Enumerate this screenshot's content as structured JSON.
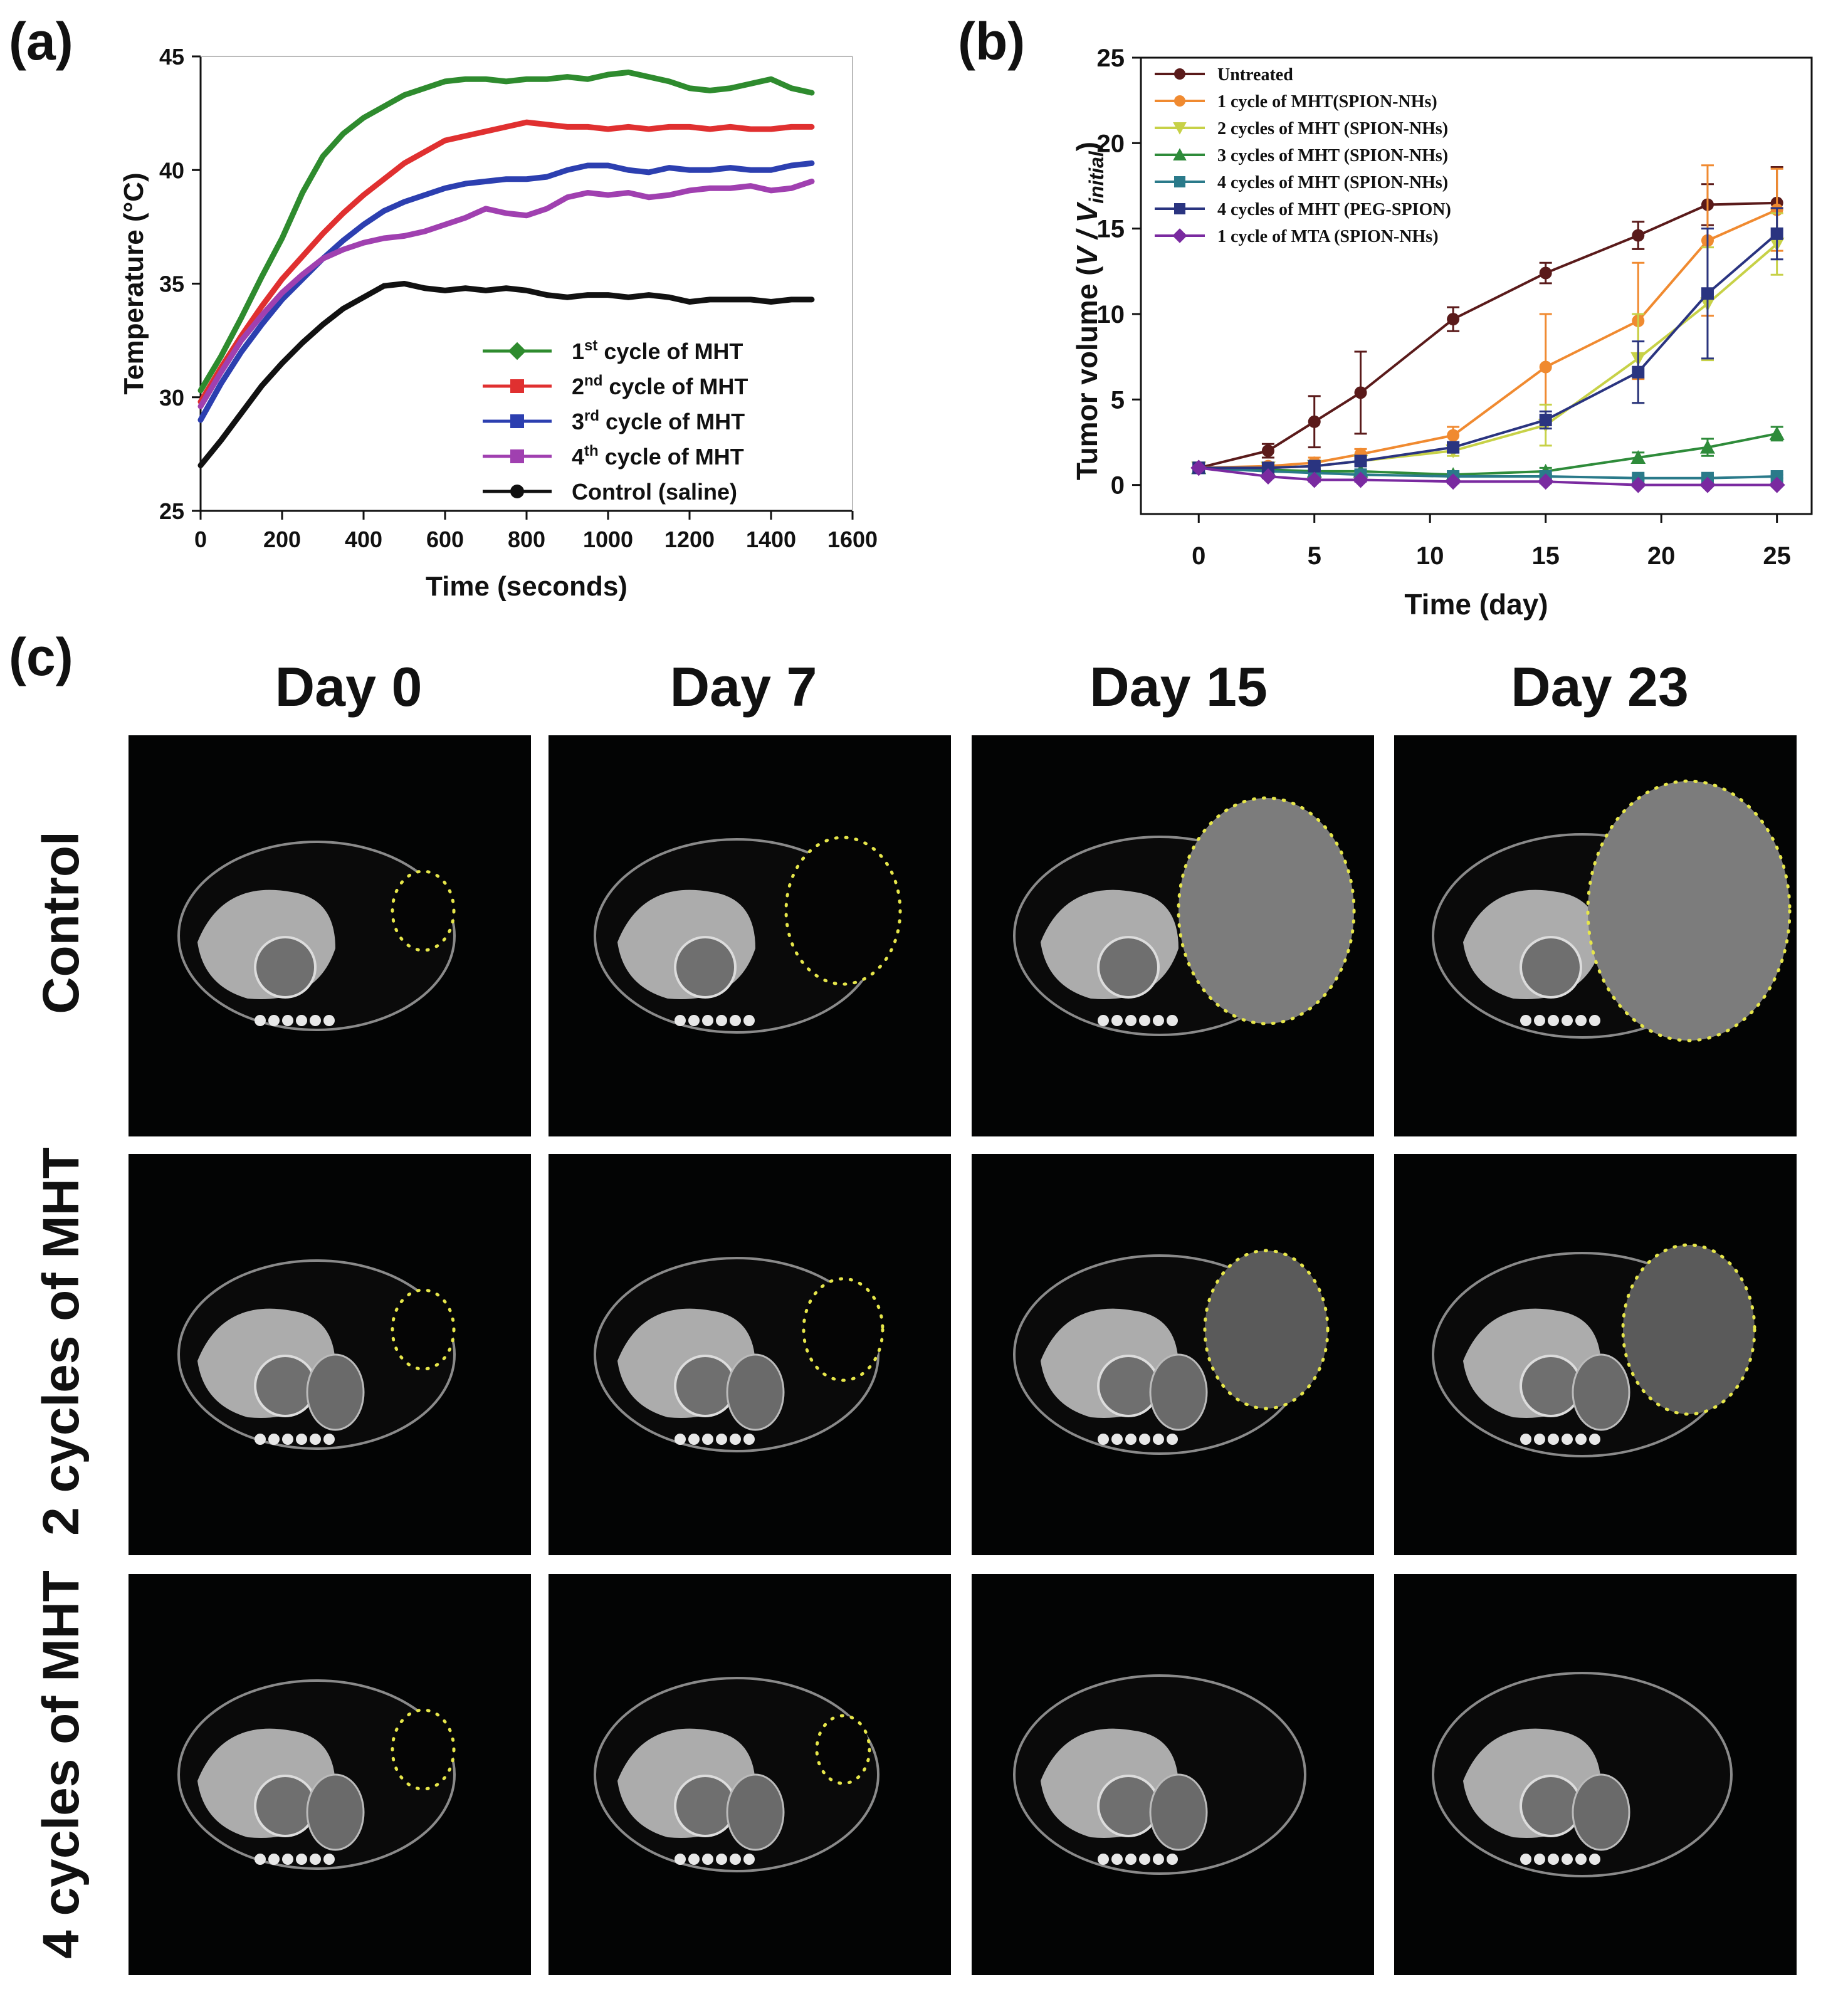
{
  "panels": {
    "a": "(a)",
    "b": "(b)",
    "c": "(c)"
  },
  "chart_data": [
    {
      "id": "a",
      "type": "line",
      "xlabel": "Time (seconds)",
      "ylabel": "Temperature (°C)",
      "xlim": [
        0,
        1600
      ],
      "ylim": [
        25,
        45
      ],
      "xticks": [
        0,
        200,
        400,
        600,
        800,
        1000,
        1200,
        1400,
        1600
      ],
      "yticks": [
        25,
        30,
        35,
        40,
        45
      ],
      "grid": false,
      "legend_position": "bottom-right",
      "series": [
        {
          "name": "1st cycle of MHT",
          "label_parts": [
            "1",
            "st",
            " cycle of MHT"
          ],
          "color": "#2e8b2e",
          "marker": "diamond",
          "points": [
            [
              0,
              30.3
            ],
            [
              50,
              31.8
            ],
            [
              100,
              33.5
            ],
            [
              150,
              35.3
            ],
            [
              200,
              37.0
            ],
            [
              250,
              39.0
            ],
            [
              300,
              40.6
            ],
            [
              350,
              41.6
            ],
            [
              400,
              42.3
            ],
            [
              450,
              42.8
            ],
            [
              500,
              43.3
            ],
            [
              550,
              43.6
            ],
            [
              600,
              43.9
            ],
            [
              650,
              44.0
            ],
            [
              700,
              44.0
            ],
            [
              750,
              43.9
            ],
            [
              800,
              44.0
            ],
            [
              850,
              44.0
            ],
            [
              900,
              44.1
            ],
            [
              950,
              44.0
            ],
            [
              1000,
              44.2
            ],
            [
              1050,
              44.3
            ],
            [
              1100,
              44.1
            ],
            [
              1150,
              43.9
            ],
            [
              1200,
              43.6
            ],
            [
              1250,
              43.5
            ],
            [
              1300,
              43.6
            ],
            [
              1350,
              43.8
            ],
            [
              1400,
              44.0
            ],
            [
              1450,
              43.6
            ],
            [
              1500,
              43.4
            ]
          ]
        },
        {
          "name": "2nd cycle of MHT",
          "label_parts": [
            "2",
            "nd",
            " cycle of MHT"
          ],
          "color": "#e03030",
          "marker": "square",
          "points": [
            [
              0,
              29.8
            ],
            [
              50,
              31.3
            ],
            [
              100,
              32.7
            ],
            [
              150,
              34.0
            ],
            [
              200,
              35.2
            ],
            [
              250,
              36.2
            ],
            [
              300,
              37.2
            ],
            [
              350,
              38.1
            ],
            [
              400,
              38.9
            ],
            [
              450,
              39.6
            ],
            [
              500,
              40.3
            ],
            [
              550,
              40.8
            ],
            [
              600,
              41.3
            ],
            [
              650,
              41.5
            ],
            [
              700,
              41.7
            ],
            [
              750,
              41.9
            ],
            [
              800,
              42.1
            ],
            [
              850,
              42.0
            ],
            [
              900,
              41.9
            ],
            [
              950,
              41.9
            ],
            [
              1000,
              41.8
            ],
            [
              1050,
              41.9
            ],
            [
              1100,
              41.8
            ],
            [
              1150,
              41.9
            ],
            [
              1200,
              41.9
            ],
            [
              1250,
              41.8
            ],
            [
              1300,
              41.9
            ],
            [
              1350,
              41.8
            ],
            [
              1400,
              41.8
            ],
            [
              1450,
              41.9
            ],
            [
              1500,
              41.9
            ]
          ]
        },
        {
          "name": "3rd cycle of MHT",
          "label_parts": [
            "3",
            "rd",
            " cycle of MHT"
          ],
          "color": "#2c3fb0",
          "marker": "square",
          "points": [
            [
              0,
              29.0
            ],
            [
              50,
              30.6
            ],
            [
              100,
              32.0
            ],
            [
              150,
              33.2
            ],
            [
              200,
              34.3
            ],
            [
              250,
              35.2
            ],
            [
              300,
              36.1
            ],
            [
              350,
              36.9
            ],
            [
              400,
              37.6
            ],
            [
              450,
              38.2
            ],
            [
              500,
              38.6
            ],
            [
              550,
              38.9
            ],
            [
              600,
              39.2
            ],
            [
              650,
              39.4
            ],
            [
              700,
              39.5
            ],
            [
              750,
              39.6
            ],
            [
              800,
              39.6
            ],
            [
              850,
              39.7
            ],
            [
              900,
              40.0
            ],
            [
              950,
              40.2
            ],
            [
              1000,
              40.2
            ],
            [
              1050,
              40.0
            ],
            [
              1100,
              39.9
            ],
            [
              1150,
              40.1
            ],
            [
              1200,
              40.0
            ],
            [
              1250,
              40.0
            ],
            [
              1300,
              40.1
            ],
            [
              1350,
              40.0
            ],
            [
              1400,
              40.0
            ],
            [
              1450,
              40.2
            ],
            [
              1500,
              40.3
            ]
          ]
        },
        {
          "name": "4th cycle of MHT",
          "label_parts": [
            "4",
            "th",
            " cycle of MHT"
          ],
          "color": "#a040b0",
          "marker": "square",
          "points": [
            [
              0,
              29.6
            ],
            [
              50,
              31.1
            ],
            [
              100,
              32.5
            ],
            [
              150,
              33.6
            ],
            [
              200,
              34.6
            ],
            [
              250,
              35.4
            ],
            [
              300,
              36.1
            ],
            [
              350,
              36.5
            ],
            [
              400,
              36.8
            ],
            [
              450,
              37.0
            ],
            [
              500,
              37.1
            ],
            [
              550,
              37.3
            ],
            [
              600,
              37.6
            ],
            [
              650,
              37.9
            ],
            [
              700,
              38.3
            ],
            [
              750,
              38.1
            ],
            [
              800,
              38.0
            ],
            [
              850,
              38.3
            ],
            [
              900,
              38.8
            ],
            [
              950,
              39.0
            ],
            [
              1000,
              38.9
            ],
            [
              1050,
              39.0
            ],
            [
              1100,
              38.8
            ],
            [
              1150,
              38.9
            ],
            [
              1200,
              39.1
            ],
            [
              1250,
              39.2
            ],
            [
              1300,
              39.2
            ],
            [
              1350,
              39.3
            ],
            [
              1400,
              39.1
            ],
            [
              1450,
              39.2
            ],
            [
              1500,
              39.5
            ]
          ]
        },
        {
          "name": "Control (saline)",
          "label_parts": [
            "Control (saline)",
            "",
            ""
          ],
          "color": "#111111",
          "marker": "circle",
          "points": [
            [
              0,
              27.0
            ],
            [
              50,
              28.1
            ],
            [
              100,
              29.3
            ],
            [
              150,
              30.5
            ],
            [
              200,
              31.5
            ],
            [
              250,
              32.4
            ],
            [
              300,
              33.2
            ],
            [
              350,
              33.9
            ],
            [
              400,
              34.4
            ],
            [
              450,
              34.9
            ],
            [
              500,
              35.0
            ],
            [
              550,
              34.8
            ],
            [
              600,
              34.7
            ],
            [
              650,
              34.8
            ],
            [
              700,
              34.7
            ],
            [
              750,
              34.8
            ],
            [
              800,
              34.7
            ],
            [
              850,
              34.5
            ],
            [
              900,
              34.4
            ],
            [
              950,
              34.5
            ],
            [
              1000,
              34.5
            ],
            [
              1050,
              34.4
            ],
            [
              1100,
              34.5
            ],
            [
              1150,
              34.4
            ],
            [
              1200,
              34.2
            ],
            [
              1250,
              34.3
            ],
            [
              1300,
              34.3
            ],
            [
              1350,
              34.3
            ],
            [
              1400,
              34.2
            ],
            [
              1450,
              34.3
            ],
            [
              1500,
              34.3
            ]
          ]
        }
      ]
    },
    {
      "id": "b",
      "type": "line",
      "xlabel": "Time (day)",
      "ylabel_parts": [
        "Tumor volume (",
        "V / V",
        "initial",
        ")"
      ],
      "xlim": [
        -2.5,
        26.5
      ],
      "ylim": [
        -1.7,
        25
      ],
      "xticks": [
        0,
        5,
        10,
        15,
        20,
        25
      ],
      "yticks": [
        0,
        5,
        10,
        15,
        20,
        25
      ],
      "grid": false,
      "legend_position": "top-left",
      "x": [
        0,
        3,
        5,
        7,
        11,
        15,
        19,
        22,
        25
      ],
      "series": [
        {
          "name": "Untreated",
          "color": "#5a1a1a",
          "marker": "circle",
          "values": [
            1.0,
            2.0,
            3.7,
            5.4,
            9.7,
            12.4,
            14.6,
            16.4,
            16.5
          ],
          "errors": [
            0,
            0.4,
            1.5,
            2.4,
            0.7,
            0.6,
            0.8,
            1.2,
            2.1
          ]
        },
        {
          "name": "1 cycle of MHT(SPION-NHs)",
          "color": "#f08a30",
          "marker": "circle",
          "values": [
            1.0,
            1.1,
            1.3,
            1.8,
            2.9,
            6.9,
            9.6,
            14.3,
            16.1
          ],
          "errors": [
            0,
            0.2,
            0.3,
            0.3,
            0.5,
            3.1,
            3.4,
            4.4,
            2.4
          ]
        },
        {
          "name": "2 cycles of MHT (SPION-NHs)",
          "color": "#c7d147",
          "marker": "triangle-down",
          "values": [
            1.0,
            1.0,
            1.1,
            1.4,
            2.0,
            3.5,
            7.4,
            10.6,
            14.1
          ],
          "errors": [
            0,
            0.2,
            0.2,
            0.3,
            0.3,
            1.2,
            2.6,
            3.3,
            1.8
          ]
        },
        {
          "name": "3 cycles of MHT (SPION-NHs)",
          "color": "#2e8b3a",
          "marker": "triangle-up",
          "values": [
            1.0,
            0.9,
            0.8,
            0.8,
            0.6,
            0.8,
            1.6,
            2.2,
            3.0
          ],
          "errors": [
            0,
            0.1,
            0.1,
            0.1,
            0.1,
            0.2,
            0.3,
            0.5,
            0.4
          ]
        },
        {
          "name": "4 cycles of MHT (SPION-NHs)",
          "color": "#2a7a8a",
          "marker": "square",
          "values": [
            1.0,
            0.8,
            0.7,
            0.6,
            0.5,
            0.5,
            0.4,
            0.4,
            0.5
          ],
          "errors": [
            0,
            0.1,
            0.1,
            0.1,
            0.1,
            0.1,
            0.1,
            0.1,
            0.1
          ]
        },
        {
          "name": "4 cycles of MHT (PEG-SPION)",
          "color": "#2a3480",
          "marker": "square",
          "values": [
            1.0,
            1.0,
            1.1,
            1.4,
            2.2,
            3.8,
            6.6,
            11.2,
            14.7
          ],
          "errors": [
            0,
            0.2,
            0.2,
            0.3,
            0.3,
            0.5,
            1.8,
            3.8,
            1.5
          ]
        },
        {
          "name": "1 cycle of MTA (SPION-NHs)",
          "color": "#7a2aa0",
          "marker": "diamond",
          "values": [
            1.0,
            0.5,
            0.3,
            0.3,
            0.2,
            0.2,
            0.0,
            0.0,
            0.0
          ],
          "errors": [
            0,
            0.1,
            0.1,
            0.1,
            0.1,
            0.1,
            0.0,
            0.0,
            0.0
          ]
        }
      ]
    }
  ],
  "mri": {
    "columns": [
      "Day 0",
      "Day 7",
      "Day 15",
      "Day 23"
    ],
    "rows": [
      "Control",
      "2 cycles of MHT",
      "4 cycles of MHT"
    ]
  }
}
